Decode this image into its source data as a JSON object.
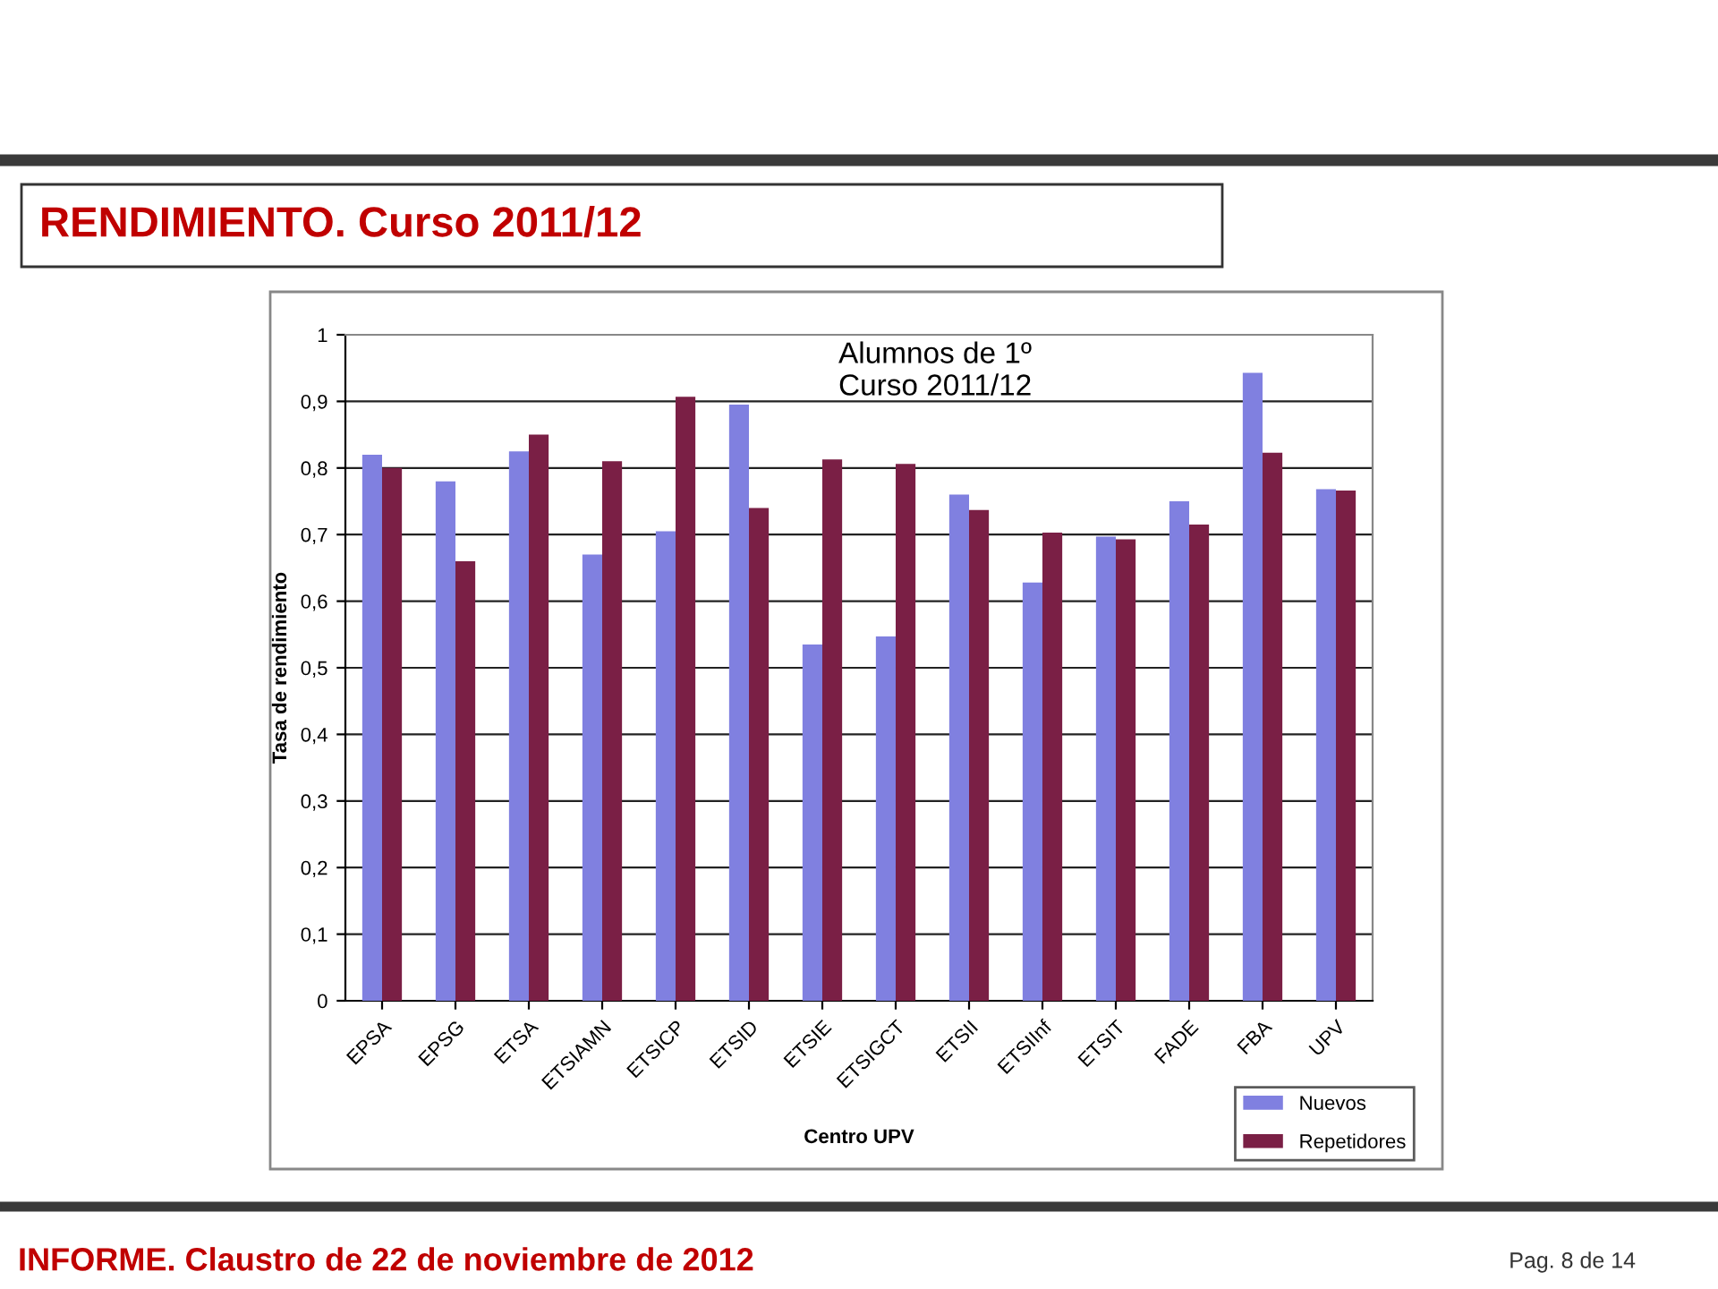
{
  "chart_data": {
    "type": "bar",
    "title": "RENDIMIENTO. Curso 2011/12",
    "xlabel": "Centro UPV",
    "ylabel": "Tasa de rendimiento",
    "categories": [
      "EPSA",
      "EPSG",
      "ETSA",
      "ETSIAMN",
      "ETSICP",
      "ETSID",
      "ETSIE",
      "ETSIGCT",
      "ETSII",
      "ETSIInf",
      "ETSIT",
      "FADE",
      "FBA",
      "UPV"
    ],
    "series": [
      {
        "name": "Nuevos",
        "color": "#8080e0",
        "values": [
          0.82,
          0.78,
          0.825,
          0.67,
          0.705,
          0.895,
          0.535,
          0.547,
          0.76,
          0.628,
          0.697,
          0.75,
          0.943,
          0.768
        ]
      },
      {
        "name": "Repetidores",
        "color": "#7a1f45",
        "values": [
          0.8,
          0.66,
          0.85,
          0.81,
          0.907,
          0.74,
          0.813,
          0.806,
          0.737,
          0.703,
          0.693,
          0.715,
          0.823,
          0.766
        ]
      }
    ],
    "ylim": [
      0,
      1
    ],
    "yticks": [
      {
        "value": 0,
        "label": "0"
      },
      {
        "value": 0.1,
        "label": "0,1"
      },
      {
        "value": 0.2,
        "label": "0,2"
      },
      {
        "value": 0.3,
        "label": "0,3"
      },
      {
        "value": 0.4,
        "label": "0,4"
      },
      {
        "value": 0.5,
        "label": "0,5"
      },
      {
        "value": 0.6,
        "label": "0,6"
      },
      {
        "value": 0.7,
        "label": "0,7"
      },
      {
        "value": 0.8,
        "label": "0,8"
      },
      {
        "value": 0.9,
        "label": "0,9"
      },
      {
        "value": 1,
        "label": "1"
      }
    ],
    "grid": "y",
    "legend": "bottom right",
    "annotations": [
      "Alumnos de 1º\nCurso 2011/12",
      "INFORME. Claustro de 22 de noviembre de 2012",
      "Pag. 8 de 14"
    ]
  }
}
